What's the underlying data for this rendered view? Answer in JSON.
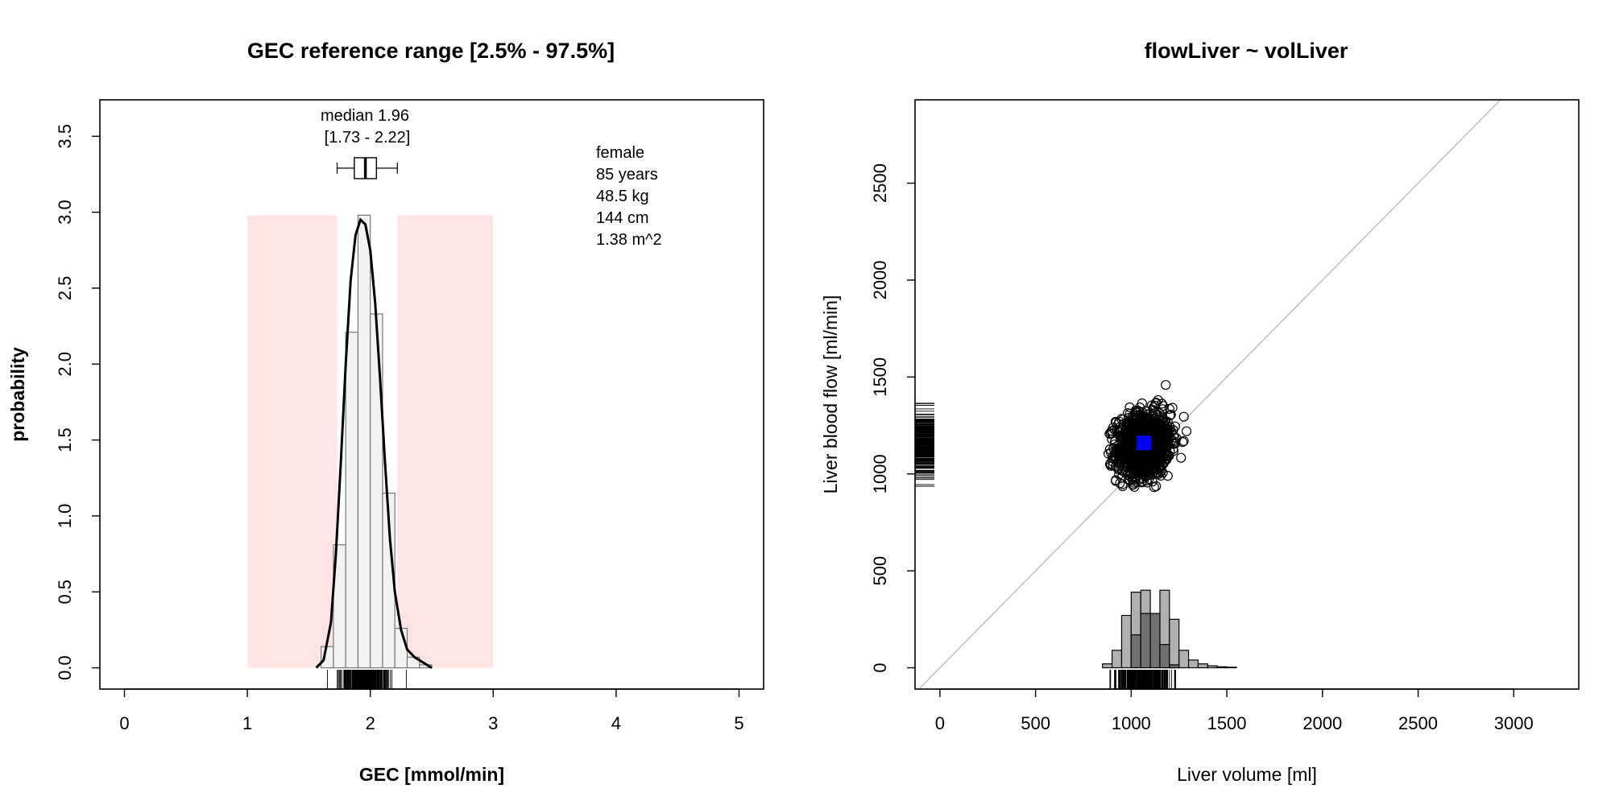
{
  "chart_data": [
    {
      "type": "bar",
      "title": "GEC reference range [2.5% - 97.5%]",
      "xlabel": "GEC [mmol/min]",
      "ylabel": "probability",
      "xlim": [
        -0.2,
        5.2
      ],
      "ylim": [
        -0.14,
        3.74
      ],
      "x_ticks": [
        "0",
        "1",
        "2",
        "3",
        "4",
        "5"
      ],
      "y_ticks": [
        "0.0",
        "0.5",
        "1.0",
        "1.5",
        "2.0",
        "2.5",
        "3.0",
        "3.5"
      ],
      "reference_range": {
        "low": 1.73,
        "high": 2.22,
        "shade_from": 1.0,
        "shade_to": 3.0,
        "shade_top": 2.98,
        "color": "#ffe4e6"
      },
      "histogram": {
        "bin_width": 0.1,
        "bins": [
          {
            "x0": 1.6,
            "value": 0.14
          },
          {
            "x0": 1.7,
            "value": 0.81
          },
          {
            "x0": 1.8,
            "value": 2.21
          },
          {
            "x0": 1.9,
            "value": 2.98
          },
          {
            "x0": 2.0,
            "value": 2.33
          },
          {
            "x0": 2.1,
            "value": 1.15
          },
          {
            "x0": 2.2,
            "value": 0.26
          },
          {
            "x0": 2.3,
            "value": 0.07
          },
          {
            "x0": 2.4,
            "value": 0.02
          }
        ],
        "fill": "#f2f2f2",
        "stroke": "#777777"
      },
      "density_curve": [
        [
          1.56,
          0.0
        ],
        [
          1.62,
          0.05
        ],
        [
          1.68,
          0.3
        ],
        [
          1.72,
          0.75
        ],
        [
          1.76,
          1.35
        ],
        [
          1.8,
          2.0
        ],
        [
          1.84,
          2.55
        ],
        [
          1.88,
          2.85
        ],
        [
          1.92,
          2.95
        ],
        [
          1.96,
          2.92
        ],
        [
          2.0,
          2.75
        ],
        [
          2.04,
          2.4
        ],
        [
          2.08,
          1.9
        ],
        [
          2.12,
          1.35
        ],
        [
          2.16,
          0.85
        ],
        [
          2.2,
          0.5
        ],
        [
          2.25,
          0.25
        ],
        [
          2.3,
          0.12
        ],
        [
          2.36,
          0.07
        ],
        [
          2.44,
          0.03
        ],
        [
          2.5,
          0.0
        ]
      ],
      "boxplot": {
        "y": 3.29,
        "whisker_low": 1.73,
        "q1": 1.87,
        "median": 1.96,
        "q3": 2.05,
        "whisker_high": 2.22,
        "label_line1": "median 1.96",
        "label_line2": "[1.73 - 2.22]"
      },
      "rug": {
        "from": 1.65,
        "to": 2.42,
        "dense_to": 2.3
      },
      "info": [
        "female",
        "85 years",
        "48.5 kg",
        "144 cm",
        "1.38 m^2"
      ]
    },
    {
      "type": "scatter",
      "title": "flowLiver ~ volLiver",
      "xlabel": "Liver volume [ml]",
      "ylabel": "Liver blood flow [ml/min]",
      "xlim": [
        -130,
        3340
      ],
      "ylim": [
        -110,
        2930
      ],
      "x_ticks": [
        "0",
        "500",
        "1000",
        "1500",
        "2000",
        "2500",
        "3000"
      ],
      "y_ticks": [
        "0",
        "500",
        "1000",
        "1500",
        "2000",
        "2500"
      ],
      "identity_line": {
        "color": "#bbbbbb"
      },
      "points_cloud": {
        "center_x": 1065,
        "center_y": 1150,
        "sd_x": 70,
        "sd_y": 85,
        "n": 1200,
        "x_range": [
          880,
          1320
        ],
        "y_range": [
          930,
          1510
        ]
      },
      "highlight": {
        "x": 1065,
        "y": 1160,
        "color": "#0000ff"
      },
      "x_histogram": {
        "bin_width": 50,
        "light_bins": [
          {
            "x0": 850,
            "value": 20
          },
          {
            "x0": 900,
            "value": 90
          },
          {
            "x0": 950,
            "value": 270
          },
          {
            "x0": 1000,
            "value": 390
          },
          {
            "x0": 1050,
            "value": 400
          },
          {
            "x0": 1100,
            "value": 280
          },
          {
            "x0": 1150,
            "value": 400
          },
          {
            "x0": 1200,
            "value": 250
          },
          {
            "x0": 1250,
            "value": 90
          },
          {
            "x0": 1300,
            "value": 40
          },
          {
            "x0": 1350,
            "value": 20
          },
          {
            "x0": 1400,
            "value": 10
          },
          {
            "x0": 1450,
            "value": 5
          },
          {
            "x0": 1500,
            "value": 3
          }
        ],
        "dark_bins": [
          {
            "x0": 1000,
            "value": 170
          },
          {
            "x0": 1050,
            "value": 280
          },
          {
            "x0": 1100,
            "value": 280
          },
          {
            "x0": 1150,
            "value": 120
          },
          {
            "x0": 1200,
            "value": 15
          }
        ],
        "light_fill": "#b0b0b0",
        "dark_fill": "#707070"
      },
      "x_rug": {
        "from": 870,
        "to": 1320
      },
      "y_rug": {
        "from": 910,
        "to": 1510,
        "dense_from": 960,
        "dense_to": 1380
      }
    }
  ]
}
